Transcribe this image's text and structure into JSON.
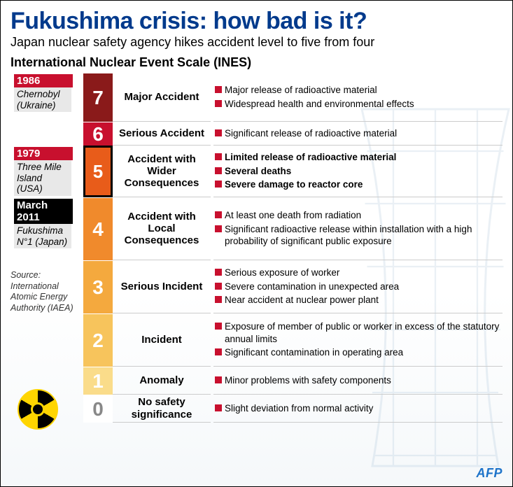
{
  "title": "Fukushima crisis: how bad is it?",
  "subtitle": "Japan nuclear safety agency hikes accident level to five from four",
  "scaleTitle": "International Nuclear Event Scale (INES)",
  "source": "Source: International Atomic Energy Authority (IAEA)",
  "logo": "AFP",
  "events": {
    "chernobyl": {
      "year": "1986",
      "name": "Chernobyl (Ukraine)"
    },
    "tmi": {
      "year": "1979",
      "name": "Three Mile Island (USA)"
    },
    "fukushima": {
      "year": "March 2011",
      "name": "Fukushima N°1 (Japan)"
    }
  },
  "levels": [
    {
      "n": "7",
      "color": "#8a1a1a",
      "label": "Major Accident",
      "h": "lc-7",
      "bold": false,
      "desc": [
        "Major release of radioactive material",
        "Widespread health and environmental effects"
      ]
    },
    {
      "n": "6",
      "color": "#c8102e",
      "label": "Serious Accident",
      "h": "lc-6",
      "bold": false,
      "desc": [
        "Significant release of radioactive material"
      ]
    },
    {
      "n": "5",
      "color": "#e85c1a",
      "label": "Accident with Wider Consequences",
      "h": "lc-5",
      "bold": true,
      "desc": [
        "Limited release of radioactive material",
        "Several deaths",
        "Severe damage to reactor core"
      ]
    },
    {
      "n": "4",
      "color": "#f08a2c",
      "label": "Accident with Local Consequences",
      "h": "lc-4",
      "bold": false,
      "desc": [
        "At least one death from radiation",
        "Significant radioactive release within installation with a high probability of significant public exposure"
      ]
    },
    {
      "n": "3",
      "color": "#f4a93e",
      "label": "Serious Incident",
      "h": "lc-3",
      "bold": false,
      "desc": [
        "Serious exposure of worker",
        "Severe contamination in unexpected area",
        "Near accident at nuclear power plant"
      ]
    },
    {
      "n": "2",
      "color": "#f7c45c",
      "label": "Incident",
      "h": "lc-2",
      "bold": false,
      "desc": [
        "Exposure of member of public or worker in excess of the statutory annual limits",
        "Significant contamination in operating area"
      ]
    },
    {
      "n": "1",
      "color": "#fadc8a",
      "label": "Anomaly",
      "h": "lc-1",
      "bold": false,
      "desc": [
        "Minor problems with safety components"
      ]
    },
    {
      "n": "0",
      "color": "#ffffff",
      "textcolor": "#888",
      "label": "No safety significance",
      "h": "lc-0",
      "bold": false,
      "desc": [
        "Slight deviation from normal activity"
      ]
    }
  ]
}
